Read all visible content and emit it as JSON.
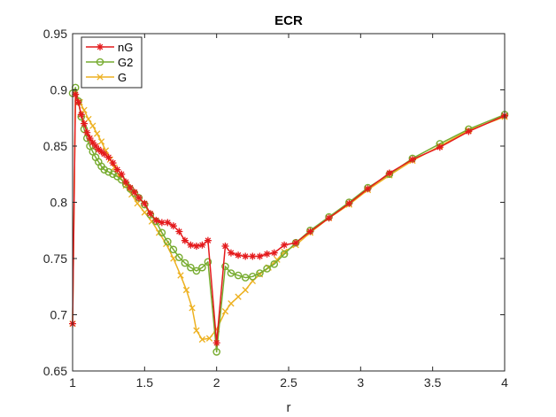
{
  "chart_data": {
    "type": "line",
    "title": "ECR",
    "xlabel": "r",
    "ylabel": "",
    "xlim": [
      1,
      4
    ],
    "ylim": [
      0.65,
      0.95
    ],
    "x_ticks": [
      "1",
      "1.5",
      "2",
      "2.5",
      "3",
      "3.5",
      "4"
    ],
    "y_ticks": [
      "0.65",
      "0.7",
      "0.75",
      "0.8",
      "0.85",
      "0.9",
      "0.95"
    ],
    "grid": false,
    "legend_position": "top-left",
    "series": [
      {
        "name": "nG",
        "color": "#e41a1c",
        "marker": "star",
        "points": [
          [
            1.0,
            0.692
          ],
          [
            1.02,
            0.896
          ],
          [
            1.04,
            0.889
          ],
          [
            1.06,
            0.878
          ],
          [
            1.08,
            0.87
          ],
          [
            1.1,
            0.862
          ],
          [
            1.12,
            0.857
          ],
          [
            1.14,
            0.853
          ],
          [
            1.16,
            0.85
          ],
          [
            1.18,
            0.847
          ],
          [
            1.2,
            0.845
          ],
          [
            1.22,
            0.843
          ],
          [
            1.25,
            0.84
          ],
          [
            1.28,
            0.835
          ],
          [
            1.31,
            0.829
          ],
          [
            1.34,
            0.825
          ],
          [
            1.37,
            0.818
          ],
          [
            1.4,
            0.813
          ],
          [
            1.43,
            0.809
          ],
          [
            1.46,
            0.804
          ],
          [
            1.5,
            0.799
          ],
          [
            1.54,
            0.79
          ],
          [
            1.58,
            0.784
          ],
          [
            1.62,
            0.782
          ],
          [
            1.66,
            0.782
          ],
          [
            1.7,
            0.779
          ],
          [
            1.74,
            0.774
          ],
          [
            1.78,
            0.766
          ],
          [
            1.82,
            0.762
          ],
          [
            1.86,
            0.761
          ],
          [
            1.9,
            0.762
          ],
          [
            1.94,
            0.766
          ],
          [
            2.0,
            0.675
          ],
          [
            2.06,
            0.761
          ],
          [
            2.1,
            0.755
          ],
          [
            2.15,
            0.753
          ],
          [
            2.2,
            0.752
          ],
          [
            2.25,
            0.752
          ],
          [
            2.3,
            0.752
          ],
          [
            2.35,
            0.754
          ],
          [
            2.4,
            0.755
          ],
          [
            2.47,
            0.762
          ],
          [
            2.55,
            0.764
          ],
          [
            2.65,
            0.774
          ],
          [
            2.78,
            0.786
          ],
          [
            2.92,
            0.799
          ],
          [
            3.05,
            0.812
          ],
          [
            3.2,
            0.826
          ],
          [
            3.36,
            0.838
          ],
          [
            3.55,
            0.849
          ],
          [
            3.75,
            0.863
          ],
          [
            4.0,
            0.877
          ]
        ]
      },
      {
        "name": "G2",
        "color": "#77ac30",
        "marker": "circle",
        "points": [
          [
            1.0,
            0.897
          ],
          [
            1.02,
            0.902
          ],
          [
            1.04,
            0.89
          ],
          [
            1.06,
            0.876
          ],
          [
            1.08,
            0.865
          ],
          [
            1.1,
            0.857
          ],
          [
            1.12,
            0.85
          ],
          [
            1.14,
            0.845
          ],
          [
            1.16,
            0.84
          ],
          [
            1.18,
            0.836
          ],
          [
            1.2,
            0.832
          ],
          [
            1.22,
            0.829
          ],
          [
            1.25,
            0.827
          ],
          [
            1.28,
            0.825
          ],
          [
            1.31,
            0.823
          ],
          [
            1.34,
            0.82
          ],
          [
            1.37,
            0.816
          ],
          [
            1.4,
            0.812
          ],
          [
            1.43,
            0.808
          ],
          [
            1.46,
            0.804
          ],
          [
            1.5,
            0.798
          ],
          [
            1.54,
            0.789
          ],
          [
            1.58,
            0.783
          ],
          [
            1.62,
            0.773
          ],
          [
            1.66,
            0.765
          ],
          [
            1.7,
            0.758
          ],
          [
            1.74,
            0.751
          ],
          [
            1.78,
            0.746
          ],
          [
            1.82,
            0.742
          ],
          [
            1.86,
            0.739
          ],
          [
            1.9,
            0.742
          ],
          [
            1.94,
            0.747
          ],
          [
            2.0,
            0.667
          ],
          [
            2.06,
            0.743
          ],
          [
            2.1,
            0.737
          ],
          [
            2.15,
            0.735
          ],
          [
            2.2,
            0.733
          ],
          [
            2.25,
            0.734
          ],
          [
            2.3,
            0.737
          ],
          [
            2.35,
            0.741
          ],
          [
            2.4,
            0.745
          ],
          [
            2.47,
            0.754
          ],
          [
            2.55,
            0.764
          ],
          [
            2.65,
            0.775
          ],
          [
            2.78,
            0.787
          ],
          [
            2.92,
            0.8
          ],
          [
            3.05,
            0.813
          ],
          [
            3.2,
            0.825
          ],
          [
            3.36,
            0.839
          ],
          [
            3.55,
            0.852
          ],
          [
            3.75,
            0.865
          ],
          [
            4.0,
            0.878
          ]
        ]
      },
      {
        "name": "G",
        "color": "#edb120",
        "marker": "x",
        "points": [
          [
            1.0,
            0.692
          ],
          [
            1.02,
            0.898
          ],
          [
            1.05,
            0.889
          ],
          [
            1.08,
            0.882
          ],
          [
            1.11,
            0.874
          ],
          [
            1.14,
            0.868
          ],
          [
            1.17,
            0.861
          ],
          [
            1.2,
            0.854
          ],
          [
            1.23,
            0.846
          ],
          [
            1.26,
            0.838
          ],
          [
            1.29,
            0.831
          ],
          [
            1.33,
            0.822
          ],
          [
            1.37,
            0.815
          ],
          [
            1.41,
            0.807
          ],
          [
            1.45,
            0.799
          ],
          [
            1.5,
            0.791
          ],
          [
            1.55,
            0.783
          ],
          [
            1.6,
            0.773
          ],
          [
            1.65,
            0.763
          ],
          [
            1.7,
            0.75
          ],
          [
            1.75,
            0.735
          ],
          [
            1.79,
            0.722
          ],
          [
            1.83,
            0.706
          ],
          [
            1.86,
            0.686
          ],
          [
            1.9,
            0.678
          ],
          [
            1.95,
            0.679
          ],
          [
            2.0,
            0.687
          ],
          [
            2.06,
            0.703
          ],
          [
            2.1,
            0.71
          ],
          [
            2.15,
            0.716
          ],
          [
            2.2,
            0.722
          ],
          [
            2.25,
            0.73
          ],
          [
            2.3,
            0.736
          ],
          [
            2.36,
            0.742
          ],
          [
            2.42,
            0.749
          ],
          [
            2.47,
            0.756
          ],
          [
            2.55,
            0.762
          ],
          [
            2.65,
            0.773
          ],
          [
            2.78,
            0.786
          ],
          [
            2.92,
            0.798
          ],
          [
            3.05,
            0.811
          ],
          [
            3.2,
            0.824
          ],
          [
            3.36,
            0.837
          ],
          [
            3.55,
            0.85
          ],
          [
            3.75,
            0.864
          ],
          [
            4.0,
            0.876
          ]
        ]
      }
    ]
  }
}
